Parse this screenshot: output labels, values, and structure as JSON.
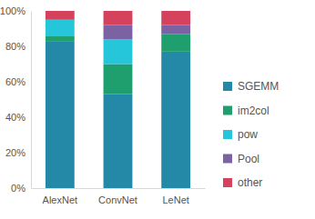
{
  "chart_data": {
    "type": "bar",
    "stacked": true,
    "legend": "right",
    "categories": [
      "AlexNet",
      "ConvNet",
      "LeNet"
    ],
    "series": [
      {
        "name": "SGEMM",
        "color": "#2389a6",
        "values": [
          83,
          53,
          77
        ]
      },
      {
        "name": "im2col",
        "color": "#1f9e6e",
        "values": [
          3,
          17,
          10
        ]
      },
      {
        "name": "pow",
        "color": "#26c6da",
        "values": [
          9,
          14,
          0
        ]
      },
      {
        "name": "Pool",
        "color": "#7b62a3",
        "values": [
          0,
          8,
          5
        ]
      },
      {
        "name": "other",
        "color": "#d4435b",
        "values": [
          5,
          8,
          8
        ]
      }
    ],
    "ylim": [
      0,
      100
    ],
    "yticks": [
      {
        "value": 0,
        "label": "0%"
      },
      {
        "value": 20,
        "label": "20%"
      },
      {
        "value": 40,
        "label": "40%"
      },
      {
        "value": 60,
        "label": "60%"
      },
      {
        "value": 80,
        "label": "80%"
      },
      {
        "value": 100,
        "label": "100%"
      }
    ]
  }
}
